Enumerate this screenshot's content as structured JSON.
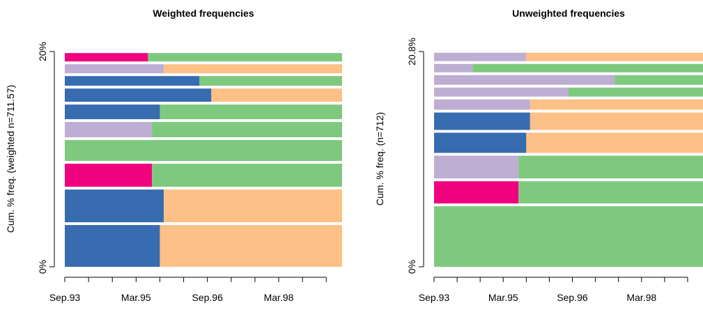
{
  "chart_data": [
    {
      "type": "sequence-frequency",
      "title": "Weighted frequencies",
      "ylabel": "Cum. % freq. (weighted n=711.57)",
      "xlim": [
        0,
        70
      ],
      "ylim": [
        0,
        20
      ],
      "xticks": [
        {
          "value": 0,
          "label": "Sep.93"
        },
        {
          "value": 18,
          "label": "Mar.95"
        },
        {
          "value": 36,
          "label": "Sep.96"
        },
        {
          "value": 54,
          "label": "Mar.98"
        }
      ],
      "xminor_ticks": [
        6,
        12,
        24,
        30,
        42,
        48,
        60,
        66
      ],
      "yticks": [
        {
          "value": 0,
          "label": "0%"
        },
        {
          "value": 20,
          "label": "20%"
        }
      ],
      "sequences": [
        {
          "frequency": 3.88,
          "segments": [
            {
              "color": "#386CB0",
              "start": 0,
              "end": 24
            },
            {
              "color": "#FDC086",
              "start": 24,
              "end": 70
            }
          ]
        },
        {
          "frequency": 3.04,
          "segments": [
            {
              "color": "#386CB0",
              "start": 0,
              "end": 25
            },
            {
              "color": "#FDC086",
              "start": 25,
              "end": 70
            }
          ]
        },
        {
          "frequency": 2.14,
          "segments": [
            {
              "color": "#F0027F",
              "start": 0,
              "end": 22
            },
            {
              "color": "#7FC97F",
              "start": 22,
              "end": 70
            }
          ]
        },
        {
          "frequency": 1.94,
          "segments": [
            {
              "color": "#7FC97F",
              "start": 0,
              "end": 70
            }
          ]
        },
        {
          "frequency": 1.42,
          "segments": [
            {
              "color": "#BEAED4",
              "start": 0,
              "end": 22
            },
            {
              "color": "#7FC97F",
              "start": 22,
              "end": 70
            }
          ]
        },
        {
          "frequency": 1.36,
          "segments": [
            {
              "color": "#386CB0",
              "start": 0,
              "end": 24
            },
            {
              "color": "#7FC97F",
              "start": 24,
              "end": 70
            }
          ]
        },
        {
          "frequency": 1.23,
          "segments": [
            {
              "color": "#386CB0",
              "start": 0,
              "end": 37
            },
            {
              "color": "#FDC086",
              "start": 37,
              "end": 70
            }
          ]
        },
        {
          "frequency": 0.9,
          "segments": [
            {
              "color": "#386CB0",
              "start": 0,
              "end": 34
            },
            {
              "color": "#7FC97F",
              "start": 34,
              "end": 70
            }
          ]
        },
        {
          "frequency": 0.84,
          "segments": [
            {
              "color": "#BEAED4",
              "start": 0,
              "end": 25
            },
            {
              "color": "#FDC086",
              "start": 25,
              "end": 70
            }
          ]
        },
        {
          "frequency": 0.78,
          "segments": [
            {
              "color": "#F0027F",
              "start": 0,
              "end": 21
            },
            {
              "color": "#7FC97F",
              "start": 21,
              "end": 70
            }
          ]
        }
      ]
    },
    {
      "type": "sequence-frequency",
      "title": "Unweighted frequencies",
      "ylabel": "Cum. % freq. (n=712)",
      "xlim": [
        0,
        70
      ],
      "ylim": [
        0,
        20.8
      ],
      "xticks": [
        {
          "value": 0,
          "label": "Sep.93"
        },
        {
          "value": 18,
          "label": "Mar.95"
        },
        {
          "value": 36,
          "label": "Sep.96"
        },
        {
          "value": 54,
          "label": "Mar.98"
        }
      ],
      "xminor_ticks": [
        6,
        12,
        24,
        30,
        42,
        48,
        60,
        66
      ],
      "yticks": [
        {
          "value": 0,
          "label": "0%"
        },
        {
          "value": 20.8,
          "label": "20.8%"
        }
      ],
      "sequences": [
        {
          "frequency": 5.85,
          "segments": [
            {
              "color": "#7FC97F",
              "start": 0,
              "end": 70
            }
          ]
        },
        {
          "frequency": 2.15,
          "segments": [
            {
              "color": "#F0027F",
              "start": 0,
              "end": 22
            },
            {
              "color": "#7FC97F",
              "start": 22,
              "end": 70
            }
          ]
        },
        {
          "frequency": 2.2,
          "segments": [
            {
              "color": "#BEAED4",
              "start": 0,
              "end": 22
            },
            {
              "color": "#7FC97F",
              "start": 22,
              "end": 70
            }
          ]
        },
        {
          "frequency": 1.95,
          "segments": [
            {
              "color": "#386CB0",
              "start": 0,
              "end": 24
            },
            {
              "color": "#FDC086",
              "start": 24,
              "end": 70
            }
          ]
        },
        {
          "frequency": 1.68,
          "segments": [
            {
              "color": "#386CB0",
              "start": 0,
              "end": 25
            },
            {
              "color": "#FDC086",
              "start": 25,
              "end": 70
            }
          ]
        },
        {
          "frequency": 1.0,
          "segments": [
            {
              "color": "#BEAED4",
              "start": 0,
              "end": 25
            },
            {
              "color": "#FDC086",
              "start": 25,
              "end": 70
            }
          ]
        },
        {
          "frequency": 0.87,
          "segments": [
            {
              "color": "#BEAED4",
              "start": 0,
              "end": 35
            },
            {
              "color": "#7FC97F",
              "start": 35,
              "end": 70
            }
          ]
        },
        {
          "frequency": 0.94,
          "segments": [
            {
              "color": "#BEAED4",
              "start": 0,
              "end": 47
            },
            {
              "color": "#7FC97F",
              "start": 47,
              "end": 70
            }
          ]
        },
        {
          "frequency": 0.81,
          "segments": [
            {
              "color": "#BEAED4",
              "start": 0,
              "end": 10
            },
            {
              "color": "#7FC97F",
              "start": 10,
              "end": 70
            }
          ]
        },
        {
          "frequency": 0.81,
          "segments": [
            {
              "color": "#BEAED4",
              "start": 0,
              "end": 24
            },
            {
              "color": "#FDC086",
              "start": 24,
              "end": 70
            }
          ]
        }
      ]
    }
  ]
}
